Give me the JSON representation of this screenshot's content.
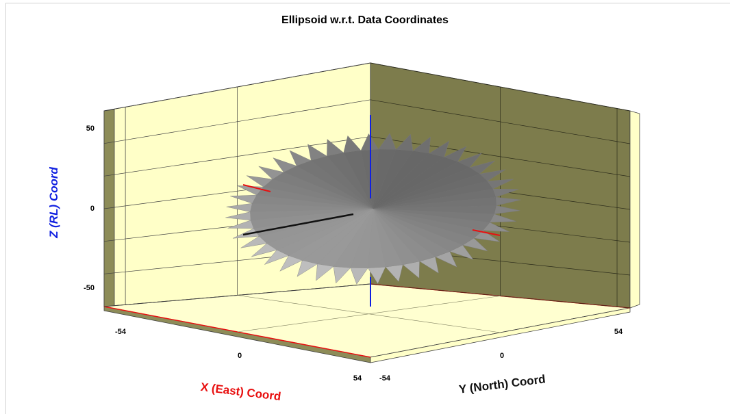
{
  "chart_data": {
    "type": "3d-surface",
    "title": "Ellipsoid w.r.t. Data Coordinates",
    "xlabel": "X (East) Coord",
    "ylabel": "Y (North) Coord",
    "zlabel": "Z (RL) Coord",
    "x_ticks": [
      "-54",
      "0",
      "54"
    ],
    "y_ticks": [
      "-54",
      "0",
      "54"
    ],
    "z_ticks": [
      "50",
      "0",
      "-50"
    ],
    "xlim": [
      -54,
      54
    ],
    "ylim": [
      -54,
      54
    ],
    "zlim": [
      -50,
      50
    ],
    "grid": true,
    "colors": {
      "x_axis": "#e81010",
      "y_axis": "#111111",
      "z_axis": "#1020e0",
      "wall_left": "#ffffc8",
      "wall_right": "#7d7c4c",
      "floor": "#ffffd0",
      "surface": "#9a9a9a"
    }
  }
}
